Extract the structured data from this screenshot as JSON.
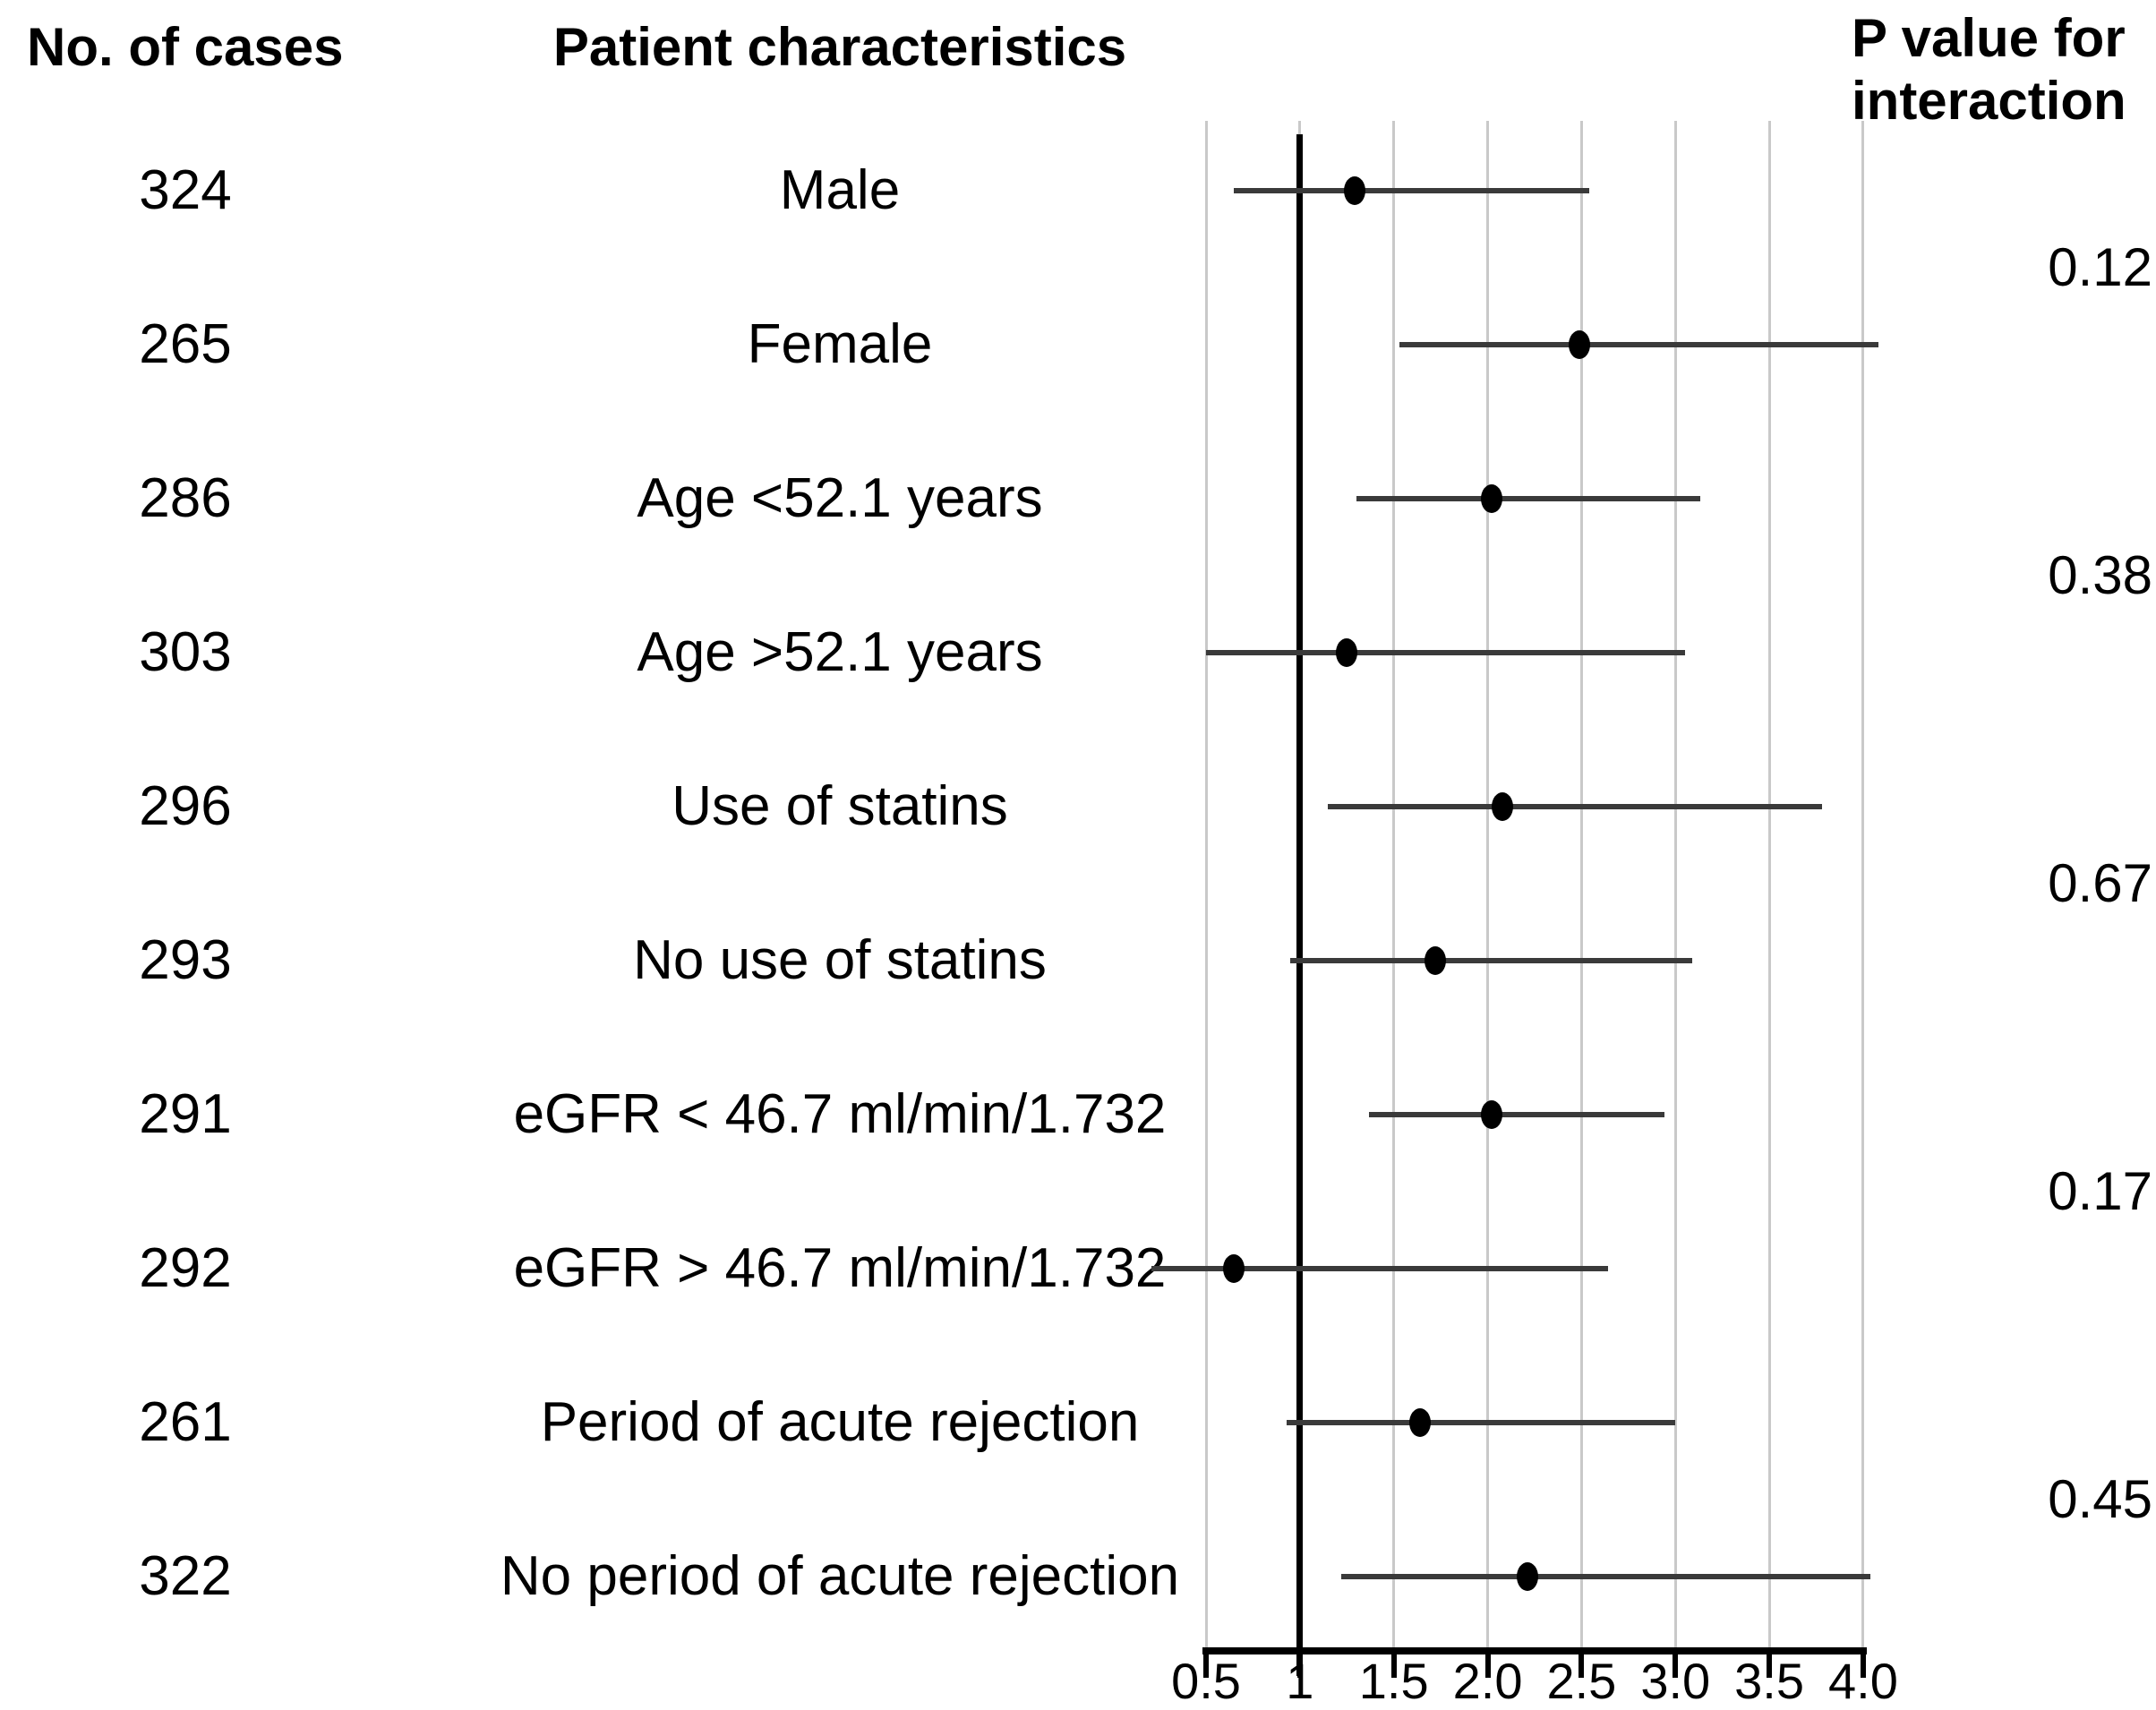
{
  "figure": {
    "cases_header": "No. of cases",
    "characteristics_header": "Patient characteristics",
    "pvalue_header_line1": "P value for",
    "pvalue_header_line2": "interaction"
  },
  "chart_data": {
    "type": "forest",
    "title": "",
    "x_axis": {
      "range": [
        0.5,
        4.0
      ],
      "reference_line": 1,
      "ticks": [
        {
          "value": 0.5,
          "label": "0.5"
        },
        {
          "value": 1.0,
          "label": "1"
        },
        {
          "value": 1.5,
          "label": "1.5"
        },
        {
          "value": 2.0,
          "label": "2.0"
        },
        {
          "value": 2.5,
          "label": "2.5"
        },
        {
          "value": 3.0,
          "label": "3.0"
        },
        {
          "value": 3.5,
          "label": "3.5"
        },
        {
          "value": 4.0,
          "label": "4.0"
        }
      ],
      "grid": true
    },
    "rows": [
      {
        "cases": "324",
        "label": "Male",
        "estimate": 1.29,
        "ci_low": 0.65,
        "ci_high": 2.54
      },
      {
        "cases": "265",
        "label": "Female",
        "estimate": 2.49,
        "ci_low": 1.53,
        "ci_high": 4.08
      },
      {
        "cases": "286",
        "label": "Age <52.1 years",
        "estimate": 2.02,
        "ci_low": 1.3,
        "ci_high": 3.13
      },
      {
        "cases": "303",
        "label": "Age >52.1 years",
        "estimate": 1.25,
        "ci_low": 0.5,
        "ci_high": 3.05
      },
      {
        "cases": "296",
        "label": "Use of statins",
        "estimate": 2.08,
        "ci_low": 1.15,
        "ci_high": 3.78
      },
      {
        "cases": "293",
        "label": "No use of statins",
        "estimate": 1.72,
        "ci_low": 0.95,
        "ci_high": 3.09
      },
      {
        "cases": "291",
        "label": "eGFR < 46.7 ml/min/1.732",
        "estimate": 2.02,
        "ci_low": 1.37,
        "ci_high": 2.94
      },
      {
        "cases": "292",
        "label": "eGFR > 46.7 ml/min/1.732",
        "estimate": 0.65,
        "ci_low": 0.21,
        "ci_high": 2.64
      },
      {
        "cases": "261",
        "label": "Period of acute rejection",
        "estimate": 1.64,
        "ci_low": 0.93,
        "ci_high": 3.0
      },
      {
        "cases": "322",
        "label": "No period of acute rejection",
        "estimate": 2.21,
        "ci_low": 1.22,
        "ci_high": 4.04
      }
    ],
    "p_values": [
      {
        "value": "0.12",
        "between_rows": [
          0,
          1
        ]
      },
      {
        "value": "0.38",
        "between_rows": [
          2,
          3
        ]
      },
      {
        "value": "0.67",
        "between_rows": [
          4,
          5
        ]
      },
      {
        "value": "0.17",
        "between_rows": [
          6,
          7
        ]
      },
      {
        "value": "0.45",
        "between_rows": [
          8,
          9
        ]
      }
    ],
    "colors": {
      "text": "#000000",
      "gridline": "#c9c9c9",
      "ci_line": "#3a3a3a",
      "marker": "#000000",
      "reference_line": "#000000",
      "axis": "#000000"
    },
    "legend": "none"
  }
}
